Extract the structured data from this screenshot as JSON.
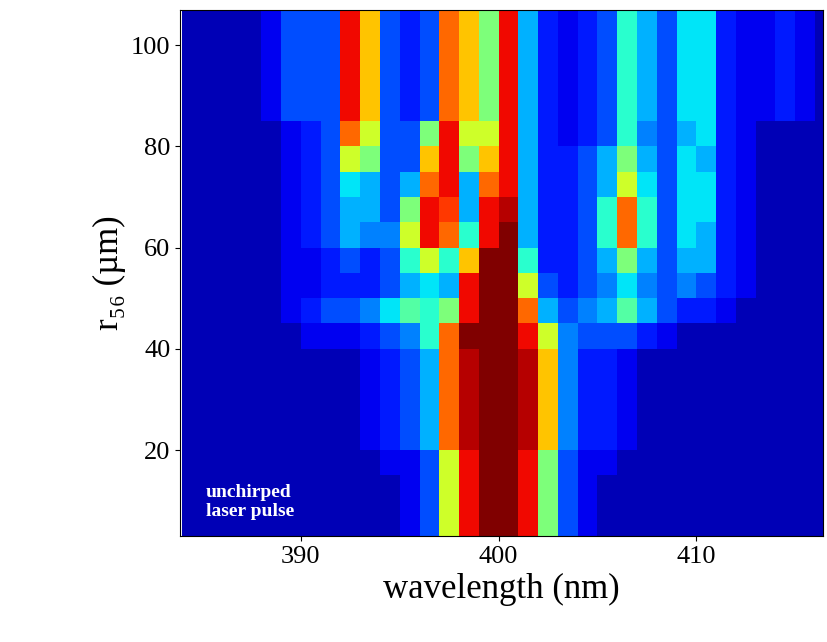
{
  "chart_data": {
    "type": "heatmap",
    "x_label": "wavelength (nm)",
    "y_label": "r₅₆ (µm)",
    "annotation": "unchirped\nlaser pulse",
    "color": "jet",
    "xlim": [
      383.9,
      416.4
    ],
    "ylim": [
      3,
      107
    ],
    "xticks": [
      390,
      400,
      410
    ],
    "yticks": [
      20,
      40,
      60,
      80,
      100
    ],
    "zlim": [
      0,
      10
    ],
    "x_bins": [
      384,
      385,
      386,
      387,
      388,
      389,
      390,
      391,
      392,
      393,
      394,
      395,
      396,
      397,
      398,
      399,
      400,
      401,
      402,
      403,
      404,
      405,
      406,
      407,
      408,
      409,
      410,
      411,
      412,
      413,
      414,
      415,
      416,
      417
    ],
    "y_bins": [
      0,
      5,
      10,
      15,
      20,
      25,
      30,
      35,
      40,
      45,
      50,
      55,
      60,
      65,
      70,
      75,
      80,
      85,
      90,
      95,
      100,
      105,
      110
    ],
    "cells": [
      [
        0.5,
        0.5,
        0.5,
        0.5,
        0.5,
        0.5,
        0.5,
        0.5,
        0.5,
        0.5,
        0.5,
        1,
        2,
        6,
        9,
        10,
        10,
        9,
        5,
        2,
        1,
        0.5,
        0.5,
        0.5,
        0.5,
        0.5,
        0.5,
        0.5,
        0.5,
        0.5,
        0.5,
        0.5,
        0.5
      ],
      [
        0.5,
        0.5,
        0.5,
        0.5,
        0.5,
        0.5,
        0.5,
        0.5,
        0.5,
        0.5,
        0.5,
        1,
        2,
        6,
        9,
        10,
        10,
        9,
        5,
        2,
        1,
        0.5,
        0.5,
        0.5,
        0.5,
        0.5,
        0.5,
        0.5,
        0.5,
        0.5,
        0.5,
        0.5,
        0.5
      ],
      [
        0.5,
        0.5,
        0.5,
        0.5,
        0.5,
        0.5,
        0.5,
        0.5,
        0.5,
        0.5,
        0.5,
        1,
        2,
        6,
        9,
        10,
        10,
        9,
        5,
        2,
        1,
        0.5,
        0.5,
        0.5,
        0.5,
        0.5,
        0.5,
        0.5,
        0.5,
        0.5,
        0.5,
        0.5,
        0.5
      ],
      [
        0.5,
        0.5,
        0.5,
        0.5,
        0.5,
        0.5,
        0.5,
        0.5,
        0.5,
        0.5,
        1,
        1,
        2,
        6,
        9,
        10,
        10,
        9,
        5,
        2,
        1,
        1,
        0.5,
        0.5,
        0.5,
        0.5,
        0.5,
        0.5,
        0.5,
        0.5,
        0.5,
        0.5,
        0.5
      ],
      [
        0.5,
        0.5,
        0.5,
        0.5,
        0.5,
        0.5,
        0.5,
        0.5,
        0.5,
        1,
        1.5,
        2,
        3,
        8,
        9.5,
        10,
        10,
        9.5,
        7,
        2.5,
        1.5,
        1.5,
        1,
        0.5,
        0.5,
        0.5,
        0.5,
        0.5,
        0.5,
        0.5,
        0.5,
        0.5,
        0.5
      ],
      [
        0.5,
        0.5,
        0.5,
        0.5,
        0.5,
        0.5,
        0.5,
        0.5,
        0.5,
        1,
        1.5,
        2,
        3,
        8,
        9.5,
        10,
        10,
        9.5,
        7,
        2.5,
        1.5,
        1.5,
        1,
        0.5,
        0.5,
        0.5,
        0.5,
        0.5,
        0.5,
        0.5,
        0.5,
        0.5,
        0.5
      ],
      [
        0.5,
        0.5,
        0.5,
        0.5,
        0.5,
        0.5,
        0.5,
        0.5,
        0.5,
        1,
        1.5,
        2,
        3,
        8,
        9.5,
        10,
        10,
        9.5,
        7,
        2.5,
        1.5,
        1.5,
        1,
        0.5,
        0.5,
        0.5,
        0.5,
        0.5,
        0.5,
        0.5,
        0.5,
        0.5,
        0.5
      ],
      [
        0.5,
        0.5,
        0.5,
        0.5,
        0.5,
        0.5,
        0.5,
        0.5,
        0.5,
        1,
        1.5,
        2,
        3,
        8,
        9.5,
        10,
        10,
        9.5,
        7,
        2.5,
        1.5,
        1.5,
        1,
        0.5,
        0.5,
        0.5,
        0.5,
        0.5,
        0.5,
        0.5,
        0.5,
        0.5,
        0.5
      ],
      [
        0.5,
        0.5,
        0.5,
        0.5,
        0.5,
        0.5,
        1,
        1,
        1,
        1.5,
        2,
        2.5,
        4,
        8,
        10,
        10,
        10,
        9,
        6,
        2.5,
        2,
        2,
        2,
        1.5,
        1,
        0.5,
        0.5,
        0.5,
        0.5,
        0.5,
        0.5,
        0.5,
        0.5
      ],
      [
        0.5,
        0.5,
        0.5,
        0.5,
        0.5,
        1,
        1.5,
        2,
        2,
        2.5,
        3.5,
        4.5,
        4,
        5,
        9,
        10,
        10,
        8,
        3,
        2,
        2.5,
        3,
        4.5,
        3,
        2,
        1.5,
        1.5,
        1,
        0.5,
        0.5,
        0.5,
        0.5,
        0.5
      ],
      [
        0.5,
        0.5,
        0.5,
        0.5,
        0.5,
        1,
        1,
        1.5,
        1.5,
        1.5,
        2,
        3,
        3.5,
        3,
        9,
        10,
        10,
        6,
        2,
        1.5,
        2,
        2.5,
        3.5,
        2.5,
        2,
        2.5,
        2,
        1.5,
        1,
        0.5,
        0.5,
        0.5,
        0.5
      ],
      [
        0.5,
        0.5,
        0.5,
        0.5,
        0.5,
        1,
        1,
        1.5,
        2,
        1.5,
        2,
        4,
        6,
        4,
        7,
        10,
        10,
        4,
        1.5,
        1.5,
        2,
        3,
        5,
        3,
        2,
        3,
        3,
        1.5,
        1,
        0.5,
        0.5,
        0.5,
        0.5
      ],
      [
        0.5,
        0.5,
        0.5,
        0.5,
        0.5,
        1,
        1.5,
        2,
        3,
        2.5,
        2.5,
        6,
        9,
        8,
        4,
        9,
        10,
        3,
        1.5,
        1.5,
        2,
        4,
        8,
        4,
        2,
        3.5,
        3,
        1.5,
        1,
        0.5,
        0.5,
        0.5,
        0.5
      ],
      [
        0.5,
        0.5,
        0.5,
        0.5,
        0.5,
        1,
        1.5,
        2,
        3,
        3,
        2,
        5,
        9,
        8.5,
        3,
        9,
        9.5,
        3,
        1.5,
        1.5,
        2,
        4,
        8,
        4,
        2,
        3.5,
        3.5,
        1.5,
        1,
        0.5,
        0.5,
        0.5,
        0.5
      ],
      [
        0.5,
        0.5,
        0.5,
        0.5,
        0.5,
        1,
        1.5,
        2,
        3.5,
        3,
        2,
        3,
        8,
        9,
        3,
        8,
        9,
        3,
        1.5,
        1.5,
        2,
        3,
        6,
        3.5,
        2,
        3.5,
        3.5,
        1.5,
        1,
        0.5,
        0.5,
        0.5,
        0.5
      ],
      [
        0.5,
        0.5,
        0.5,
        0.5,
        0.5,
        1,
        1.5,
        2,
        6,
        5,
        2,
        2,
        7,
        9,
        5,
        7,
        9,
        3,
        1.5,
        1.5,
        2,
        3,
        5,
        3,
        2,
        3.5,
        3,
        1.5,
        1,
        0.5,
        0.5,
        0.5,
        0.5
      ],
      [
        0.5,
        0.5,
        0.5,
        0.5,
        0.5,
        1,
        1.5,
        2,
        8,
        6,
        2,
        2,
        5,
        9,
        6,
        6,
        9,
        3,
        1.5,
        1,
        1.5,
        2,
        4,
        2.5,
        2,
        3,
        3.5,
        1.5,
        1,
        0.5,
        0.5,
        0.5,
        0.5
      ],
      [
        0.5,
        0.5,
        0.5,
        0.5,
        1,
        2,
        2,
        2,
        9,
        7,
        2,
        1.5,
        2,
        8,
        7,
        5,
        9,
        3,
        1.5,
        1,
        1.5,
        2,
        4,
        3,
        2,
        3.5,
        3.5,
        1.5,
        1,
        1,
        1.5,
        1,
        0.5
      ],
      [
        0.5,
        0.5,
        0.5,
        0.5,
        1,
        2,
        2,
        2,
        9,
        7,
        2,
        1.5,
        2,
        8,
        7,
        5,
        9,
        3,
        1.5,
        1,
        1.5,
        2,
        4,
        3,
        2,
        3.5,
        3.5,
        1.5,
        1,
        1,
        1.5,
        1,
        0.5
      ],
      [
        0.5,
        0.5,
        0.5,
        0.5,
        1,
        2,
        2,
        2,
        9,
        7,
        2,
        1.5,
        2,
        8,
        7,
        5,
        9,
        3,
        1.5,
        1,
        1.5,
        2,
        4,
        3,
        2,
        3.5,
        3.5,
        1.5,
        1,
        1,
        1.5,
        1,
        0.5
      ],
      [
        0.5,
        0.5,
        0.5,
        0.5,
        1,
        2,
        2,
        2,
        9,
        7,
        2,
        1.5,
        2,
        8,
        7,
        5,
        9,
        3,
        1.5,
        1,
        1.5,
        2,
        4,
        3,
        2,
        3.5,
        3.5,
        1.5,
        1,
        1,
        1.5,
        1,
        0.5
      ],
      [
        0.5,
        0.5,
        0.5,
        0.5,
        1,
        2,
        2,
        2,
        9,
        7,
        2,
        1.5,
        2,
        8,
        7,
        5,
        9,
        3,
        1.5,
        1,
        1.5,
        2,
        4,
        3,
        2,
        3.5,
        3.5,
        1.5,
        1,
        1,
        1.5,
        1,
        0.5
      ]
    ]
  }
}
